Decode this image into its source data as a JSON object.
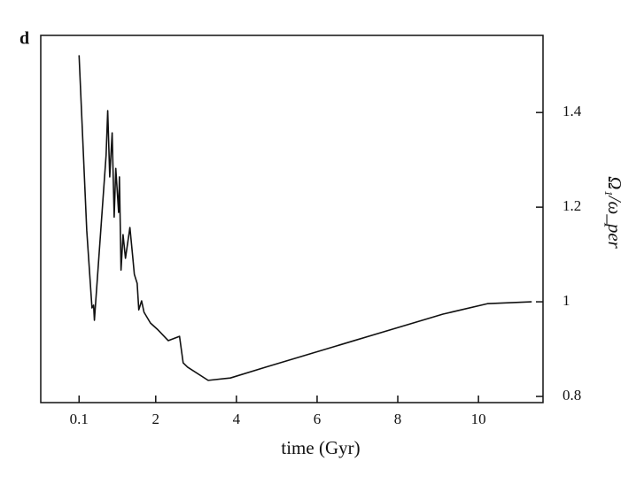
{
  "chart_data": {
    "type": "line",
    "panel_label": "d",
    "xlabel": "time (Gyr)",
    "ylabel": "Ω₁/ω_per",
    "x": [
      0.1,
      0.29,
      0.42,
      0.46,
      0.48,
      0.77,
      0.81,
      0.86,
      0.92,
      0.97,
      1.01,
      1.08,
      1.1,
      1.14,
      1.19,
      1.25,
      1.36,
      1.43,
      1.47,
      1.54,
      1.58,
      1.65,
      1.71,
      1.87,
      2.04,
      2.31,
      2.59,
      2.68,
      2.79,
      3.3,
      3.85,
      4.73,
      6.92,
      9.12,
      10.22,
      11.32
    ],
    "series": [
      {
        "color": "#111111",
        "values": [
          1.521,
          1.151,
          0.987,
          0.993,
          0.961,
          1.31,
          1.404,
          1.264,
          1.357,
          1.179,
          1.282,
          1.189,
          1.264,
          1.067,
          1.142,
          1.092,
          1.157,
          1.095,
          1.058,
          1.039,
          0.983,
          1.002,
          0.978,
          0.955,
          0.942,
          0.918,
          0.927,
          0.871,
          0.862,
          0.834,
          0.839,
          0.862,
          0.918,
          0.974,
          0.996,
          1.0
        ]
      }
    ],
    "xlim": [
      -0.85,
      11.6
    ],
    "ylim": [
      0.787,
      1.563
    ],
    "xticks": [
      0.1,
      2,
      4,
      6,
      8,
      10
    ],
    "yticks": [
      0.8,
      1,
      1.2,
      1.4
    ]
  }
}
